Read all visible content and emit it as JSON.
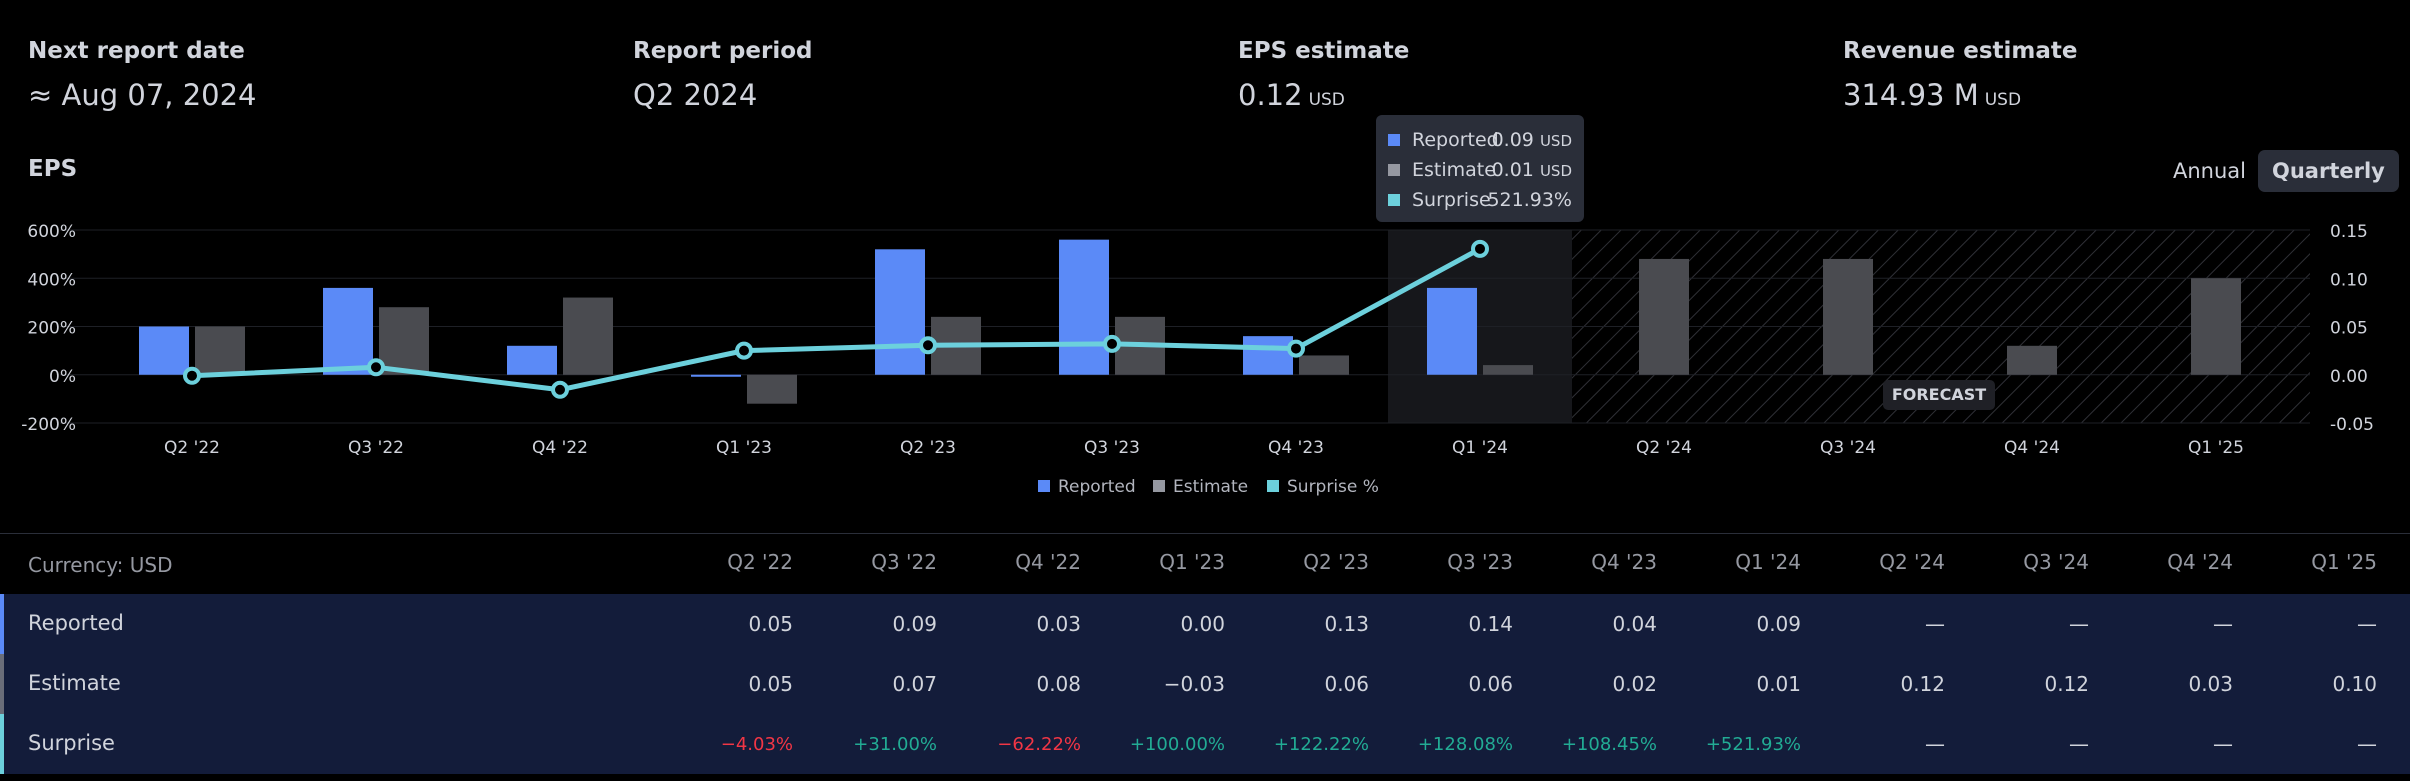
{
  "stats": [
    {
      "label": "Next report date",
      "value": "≈ Aug 07, 2024",
      "unit": ""
    },
    {
      "label": "Report period",
      "value": "Q2 2024",
      "unit": ""
    },
    {
      "label": "EPS estimate",
      "value": "0.12",
      "unit": "USD"
    },
    {
      "label": "Revenue estimate",
      "value": "314.93 M",
      "unit": "USD"
    }
  ],
  "eps_title": "EPS",
  "toggles": {
    "annual": "Annual",
    "quarterly": "Quarterly"
  },
  "tooltip": {
    "reported_label": "Reported",
    "reported_value": "0.09",
    "reported_unit": "USD",
    "estimate_label": "Estimate",
    "estimate_value": "0.01",
    "estimate_unit": "USD",
    "surprise_label": "Surprise",
    "surprise_value": "521.93%"
  },
  "colors": {
    "reported": "#5b8af7",
    "estimate": "#4a4b50",
    "surprise": "#6cd0dc",
    "positive": "#22ab94",
    "negative": "#f23645",
    "table_bg": "#131c3a"
  },
  "chart_data": {
    "type": "bar",
    "categories": [
      "Q2 '22",
      "Q3 '22",
      "Q4 '22",
      "Q1 '23",
      "Q2 '23",
      "Q3 '23",
      "Q4 '23",
      "Q1 '24",
      "Q2 '24",
      "Q3 '24",
      "Q4 '24",
      "Q1 '25"
    ],
    "series": [
      {
        "name": "Reported",
        "axis": "right",
        "values": [
          0.05,
          0.09,
          0.03,
          0.0,
          0.13,
          0.14,
          0.04,
          0.09,
          null,
          null,
          null,
          null
        ]
      },
      {
        "name": "Estimate",
        "axis": "right",
        "values": [
          0.05,
          0.07,
          0.08,
          -0.03,
          0.06,
          0.06,
          0.02,
          0.01,
          0.12,
          0.12,
          0.03,
          0.1
        ]
      },
      {
        "name": "Surprise %",
        "axis": "left",
        "type": "line",
        "values": [
          -4.03,
          31.0,
          -62.22,
          100.0,
          122.22,
          128.08,
          108.45,
          521.93,
          null,
          null,
          null,
          null
        ]
      }
    ],
    "left_axis": {
      "ticks": [
        "600%",
        "400%",
        "200%",
        "0%",
        "-200%"
      ],
      "ylim": [
        -200,
        600
      ]
    },
    "right_axis": {
      "ticks": [
        "0.15",
        "0.10",
        "0.05",
        "0.00",
        "-0.05"
      ],
      "ylim": [
        -0.05,
        0.15
      ]
    },
    "forecast_label": "FORECAST",
    "legend": [
      "Reported",
      "Estimate",
      "Surprise %"
    ],
    "highlighted_category": "Q1 '24"
  },
  "table": {
    "currency_label": "Currency: USD",
    "columns": [
      "Q2 '22",
      "Q3 '22",
      "Q4 '22",
      "Q1 '23",
      "Q2 '23",
      "Q3 '23",
      "Q4 '23",
      "Q1 '24",
      "Q2 '24",
      "Q3 '24",
      "Q4 '24",
      "Q1 '25"
    ],
    "rows": [
      {
        "label": "Reported",
        "cells": [
          "0.05",
          "0.09",
          "0.03",
          "0.00",
          "0.13",
          "0.14",
          "0.04",
          "0.09",
          "—",
          "—",
          "—",
          "—"
        ]
      },
      {
        "label": "Estimate",
        "cells": [
          "0.05",
          "0.07",
          "0.08",
          "−0.03",
          "0.06",
          "0.06",
          "0.02",
          "0.01",
          "0.12",
          "0.12",
          "0.03",
          "0.10"
        ]
      },
      {
        "label": "Surprise",
        "cells": [
          "−4.03%",
          "+31.00%",
          "−62.22%",
          "+100.00%",
          "+122.22%",
          "+128.08%",
          "+108.45%",
          "+521.93%",
          "—",
          "—",
          "—",
          "—"
        ]
      }
    ]
  }
}
